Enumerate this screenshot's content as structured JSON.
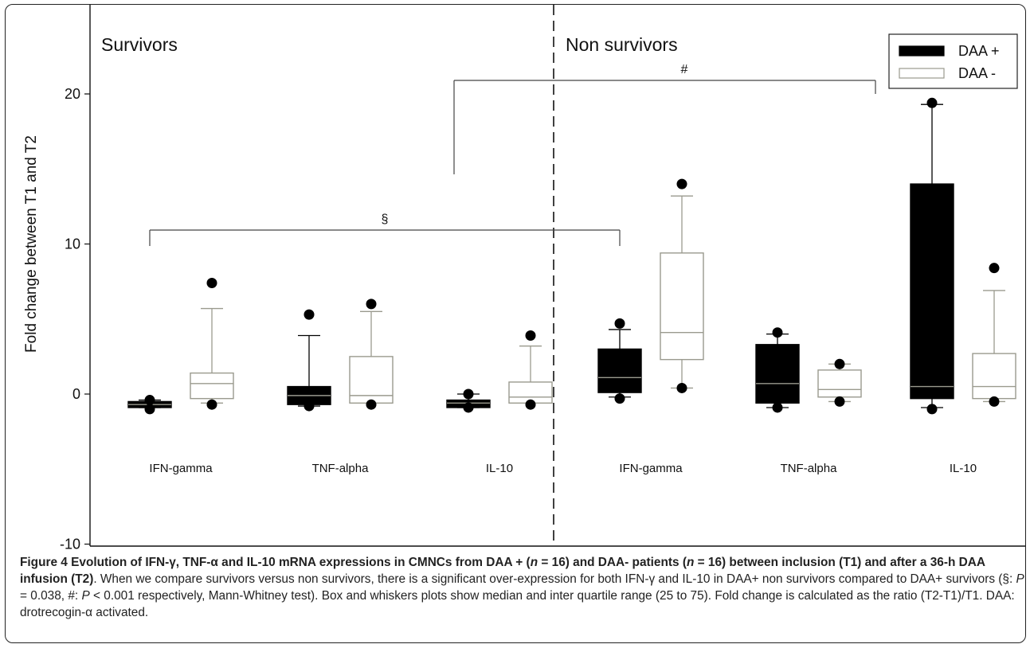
{
  "chart_data": {
    "type": "box",
    "ylabel": "Fold change between T1 and T2",
    "ylim": [
      -10,
      25
    ],
    "yticks": [
      -10,
      0,
      10,
      20
    ],
    "panels": [
      {
        "title": "Survivors",
        "groups": [
          "IFN-gamma",
          "TNF-alpha",
          "IL-10"
        ]
      },
      {
        "title": "Non survivors",
        "groups": [
          "IFN-gamma",
          "TNF-alpha",
          "IL-10"
        ]
      }
    ],
    "legend": {
      "position": "top-right",
      "entries": [
        {
          "name": "DAA +",
          "color": "#000000"
        },
        {
          "name": "DAA -",
          "color": "#ffffff"
        }
      ]
    },
    "boxes": [
      {
        "panel": "Survivors",
        "group": "IFN-gamma",
        "series": "DAA +",
        "whisker_low": -0.9,
        "q1": -0.9,
        "median": -0.7,
        "q3": -0.5,
        "whisker_high": -0.4,
        "outliers": [
          -0.4,
          -1.0
        ]
      },
      {
        "panel": "Survivors",
        "group": "IFN-gamma",
        "series": "DAA -",
        "whisker_low": -0.6,
        "q1": -0.3,
        "median": 0.7,
        "q3": 1.4,
        "whisker_high": 5.7,
        "outliers": [
          7.4,
          -0.7
        ]
      },
      {
        "panel": "Survivors",
        "group": "TNF-alpha",
        "series": "DAA +",
        "whisker_low": -0.8,
        "q1": -0.7,
        "median": -0.1,
        "q3": 0.5,
        "whisker_high": 3.9,
        "outliers": [
          5.3,
          -0.8
        ]
      },
      {
        "panel": "Survivors",
        "group": "TNF-alpha",
        "series": "DAA -",
        "whisker_low": -0.6,
        "q1": -0.6,
        "median": -0.1,
        "q3": 2.5,
        "whisker_high": 5.5,
        "outliers": [
          6.0,
          -0.7
        ]
      },
      {
        "panel": "Survivors",
        "group": "IL-10",
        "series": "DAA +",
        "whisker_low": -0.9,
        "q1": -0.9,
        "median": -0.6,
        "q3": -0.4,
        "whisker_high": 0.0,
        "outliers": [
          0.0,
          -0.9
        ]
      },
      {
        "panel": "Survivors",
        "group": "IL-10",
        "series": "DAA -",
        "whisker_low": -0.6,
        "q1": -0.6,
        "median": -0.2,
        "q3": 0.8,
        "whisker_high": 3.2,
        "outliers": [
          3.9,
          -0.7
        ]
      },
      {
        "panel": "Non survivors",
        "group": "IFN-gamma",
        "series": "DAA +",
        "whisker_low": -0.2,
        "q1": 0.1,
        "median": 1.1,
        "q3": 3.0,
        "whisker_high": 4.3,
        "outliers": [
          4.7,
          -0.3
        ]
      },
      {
        "panel": "Non survivors",
        "group": "IFN-gamma",
        "series": "DAA -",
        "whisker_low": 0.4,
        "q1": 2.3,
        "median": 4.1,
        "q3": 9.4,
        "whisker_high": 13.2,
        "outliers": [
          14.0,
          0.4
        ]
      },
      {
        "panel": "Non survivors",
        "group": "TNF-alpha",
        "series": "DAA +",
        "whisker_low": -0.9,
        "q1": -0.6,
        "median": 0.7,
        "q3": 3.3,
        "whisker_high": 4.0,
        "outliers": [
          4.1,
          -0.9
        ]
      },
      {
        "panel": "Non survivors",
        "group": "TNF-alpha",
        "series": "DAA -",
        "whisker_low": -0.5,
        "q1": -0.2,
        "median": 0.3,
        "q3": 1.6,
        "whisker_high": 2.0,
        "outliers": [
          2.0,
          -0.5
        ]
      },
      {
        "panel": "Non survivors",
        "group": "IL-10",
        "series": "DAA +",
        "whisker_low": -0.9,
        "q1": -0.3,
        "median": 0.5,
        "q3": 14.0,
        "whisker_high": 19.3,
        "outliers": [
          19.4,
          -1.0
        ]
      },
      {
        "panel": "Non survivors",
        "group": "IL-10",
        "series": "DAA -",
        "whisker_low": -0.5,
        "q1": -0.3,
        "median": 0.5,
        "q3": 2.7,
        "whisker_high": 6.9,
        "outliers": [
          8.4,
          -0.5
        ]
      }
    ],
    "annotations": [
      {
        "symbol": "§",
        "from": "Survivors IFN-gamma DAA +",
        "to": "Non survivors IFN-gamma DAA +"
      },
      {
        "symbol": "#",
        "from": "Survivors IL-10 DAA +",
        "to": "Non survivors IL-10 DAA +"
      }
    ]
  },
  "caption": {
    "title": "Figure 4 Evolution of IFN-γ, TNF-α and IL-10 mRNA expressions in CMNCs from DAA + (",
    "n1_var": "n",
    "n1_rest": " = 16) and DAA- patients (",
    "n2_var": "n",
    "n2_rest": " = 16) between inclusion (T1) and after a 36-h DAA infusion (T2)",
    "body1": ". When we compare survivors versus non survivors, there is a significant over-expression for both IFN-γ and IL-10 in DAA+ non survivors compared to DAA+ survivors (§: ",
    "p1_var": "P",
    "p1_rest": " = 0.038, #: ",
    "p2_var": "P",
    "p2_rest": " < 0.001 respectively, Mann-Whitney test). Box and whiskers plots show median and inter quartile range (25 to 75). Fold change is calculated as the ratio (T2-T1)/T1. DAA: drotrecogin-α activated."
  }
}
